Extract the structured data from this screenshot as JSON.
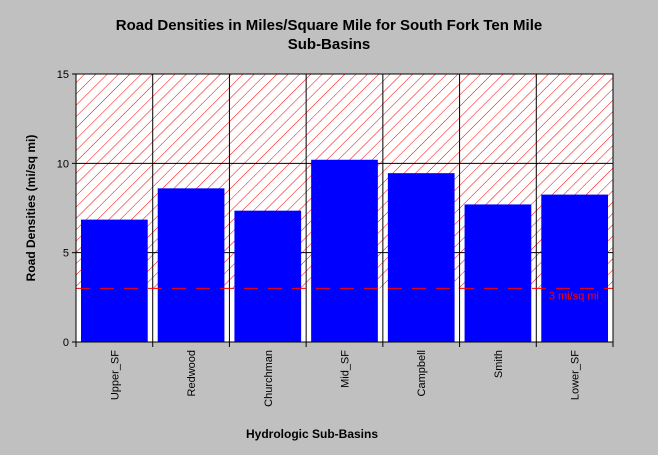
{
  "chart_data": {
    "type": "bar",
    "title_lines": [
      "Road Densities in Miles/Square Mile for South Fork Ten Mile",
      "Sub-Basins"
    ],
    "xlabel": "Hydrologic Sub-Basins",
    "ylabel": "Road Densities (mi/sq mi)",
    "categories": [
      "Upper_SF",
      "Redwood",
      "Churchman",
      "Mid_SF",
      "Campbell",
      "Smith",
      "Lower_SF"
    ],
    "values": [
      6.85,
      8.6,
      7.35,
      10.2,
      9.45,
      7.7,
      8.25
    ],
    "ylim": [
      0,
      15
    ],
    "yticks": [
      "0",
      "5",
      "10",
      "15"
    ],
    "reference_line": {
      "value": 3,
      "label": "3 mi/sq mi"
    },
    "hatched_band": [
      3,
      15
    ],
    "grid": true,
    "colors": {
      "bar": "#0000ff",
      "hatch": "#ff0000",
      "reference": "#ff0000",
      "plot_background": "#ffffff",
      "page_background": "#c0c0c0"
    }
  }
}
